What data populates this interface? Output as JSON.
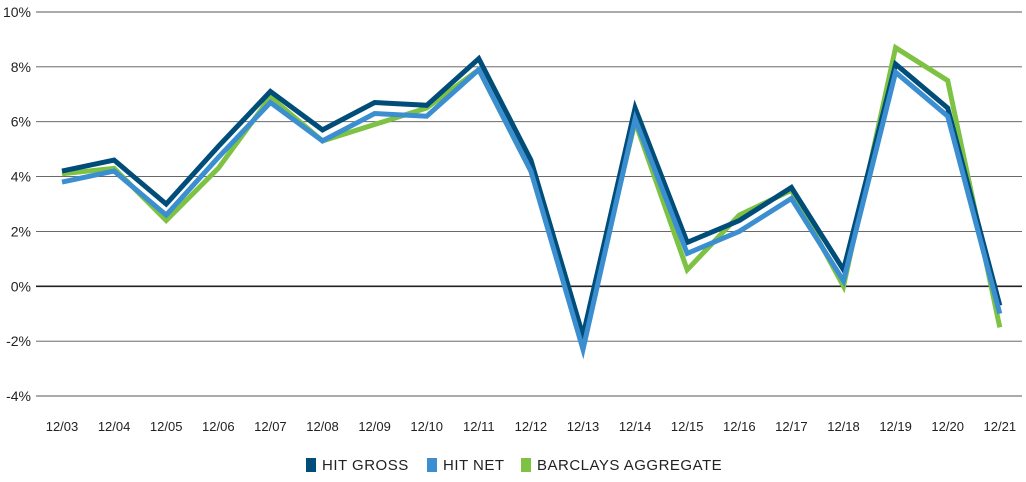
{
  "chart_data": {
    "type": "line",
    "title": "",
    "xlabel": "",
    "ylabel": "",
    "categories": [
      "12/03",
      "12/04",
      "12/05",
      "12/06",
      "12/07",
      "12/08",
      "12/09",
      "12/10",
      "12/11",
      "12/12",
      "12/13",
      "12/14",
      "12/15",
      "12/16",
      "12/17",
      "12/18",
      "12/19",
      "12/20",
      "12/21"
    ],
    "ylim": [
      -4,
      10
    ],
    "yticks": [
      10,
      8,
      6,
      4,
      2,
      0,
      -2,
      -4
    ],
    "yticks_labels": [
      "10%",
      "8%",
      "6%",
      "4%",
      "2%",
      "0%",
      "-2%",
      "-4%"
    ],
    "grid": true,
    "legend_position": "bottom",
    "series": [
      {
        "name": "BARCLAYS AGGREGATE",
        "color": "#7dc242",
        "values": [
          4.1,
          4.3,
          2.4,
          4.3,
          6.9,
          5.3,
          5.9,
          6.5,
          7.9,
          4.2,
          -2.0,
          6.0,
          0.6,
          2.6,
          3.5,
          0.0,
          8.7,
          7.5,
          -1.5
        ]
      },
      {
        "name": "HIT GROSS",
        "color": "#004d7a",
        "values": [
          4.2,
          4.6,
          3.0,
          5.1,
          7.1,
          5.7,
          6.7,
          6.6,
          8.3,
          4.6,
          -1.8,
          6.5,
          1.6,
          2.4,
          3.6,
          0.6,
          8.1,
          6.5,
          -0.7
        ]
      },
      {
        "name": "HIT NET",
        "color": "#3b8fd0",
        "values": [
          3.8,
          4.2,
          2.6,
          4.7,
          6.7,
          5.3,
          6.3,
          6.2,
          7.9,
          4.2,
          -2.3,
          6.1,
          1.2,
          2.0,
          3.2,
          0.2,
          7.8,
          6.2,
          -1.0
        ]
      }
    ],
    "legend": [
      {
        "label": "HIT GROSS",
        "color": "#004d7a"
      },
      {
        "label": "HIT NET",
        "color": "#3b8fd0"
      },
      {
        "label": "BARCLAYS AGGREGATE",
        "color": "#7dc242"
      }
    ]
  }
}
